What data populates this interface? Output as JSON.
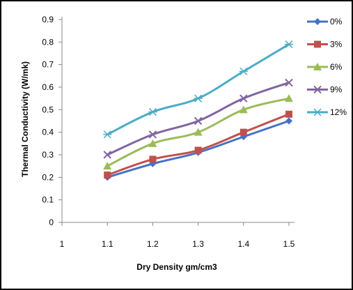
{
  "chart_data": {
    "type": "line",
    "title": "",
    "xlabel": "Dry Density gm/cm3",
    "ylabel": "Thermal Conductivity (W/mk)",
    "x_ticks": [
      "1",
      "1.1",
      "1.2",
      "1.3",
      "1.4",
      "1.5"
    ],
    "y_ticks": [
      "0",
      "0.1",
      "0.2",
      "0.3",
      "0.4",
      "0.5",
      "0.6",
      "0.7",
      "0.8",
      "0.9"
    ],
    "xlim": [
      1,
      1.5
    ],
    "ylim": [
      0,
      0.9
    ],
    "grid": false,
    "legend_position": "right",
    "x": [
      1.1,
      1.2,
      1.3,
      1.4,
      1.5
    ],
    "series": [
      {
        "name": "0%",
        "color": "#4472C4",
        "marker": "diamond",
        "values": [
          0.2,
          0.26,
          0.31,
          0.38,
          0.45
        ]
      },
      {
        "name": "3%",
        "color": "#C0504D",
        "marker": "square",
        "values": [
          0.21,
          0.28,
          0.32,
          0.4,
          0.48
        ]
      },
      {
        "name": "6%",
        "color": "#9BBB59",
        "marker": "triangle",
        "values": [
          0.25,
          0.35,
          0.4,
          0.5,
          0.55
        ]
      },
      {
        "name": "9%",
        "color": "#8064A2",
        "marker": "x",
        "values": [
          0.3,
          0.39,
          0.45,
          0.55,
          0.62
        ]
      },
      {
        "name": "12%",
        "color": "#4BACC6",
        "marker": "star",
        "values": [
          0.39,
          0.49,
          0.55,
          0.67,
          0.79
        ]
      }
    ]
  }
}
